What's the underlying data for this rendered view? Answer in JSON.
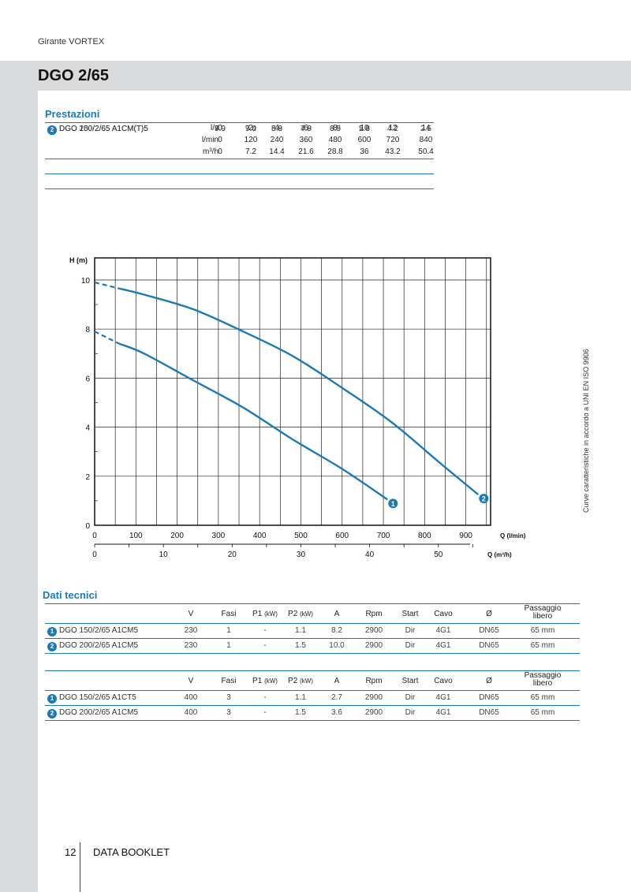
{
  "header": {
    "category": "Girante VORTEX",
    "model_title": "DGO 2/65"
  },
  "performance": {
    "section_title": "Prestazioni",
    "units": [
      "l/s",
      "l/min",
      "m³/h"
    ],
    "flow_rows": [
      [
        "0",
        "2",
        "4",
        "6",
        "8",
        "10",
        "12",
        "14"
      ],
      [
        "0",
        "120",
        "240",
        "360",
        "480",
        "600",
        "720",
        "840"
      ],
      [
        "0",
        "7.2",
        "14.4",
        "21.6",
        "28.8",
        "36",
        "43.2",
        "50.4"
      ]
    ],
    "models": [
      {
        "badge": "1",
        "name": "DGO 150/2/65 A1CM(T)5",
        "heads": [
          "7.9",
          "7.0",
          "5.9",
          "4.8",
          "3.5",
          "2.3",
          "",
          ""
        ]
      },
      {
        "badge": "2",
        "name": "DGO 200/2/65 A1CM(T)5",
        "heads": [
          "9.9",
          "9.4",
          "8.8",
          "7.9",
          "6.9",
          "5.6",
          "4.2",
          "2.5"
        ]
      }
    ]
  },
  "chart_data": {
    "type": "line",
    "ylabel": "H (m)",
    "xlabel": "Q (l/min)",
    "x2label": "Q (m³/h)",
    "xlim": [
      0,
      960
    ],
    "ylim": [
      0,
      10.9
    ],
    "x_ticks": [
      "0",
      "100",
      "200",
      "300",
      "400",
      "500",
      "600",
      "700",
      "800",
      "900"
    ],
    "x2_ticks": [
      "0",
      "10",
      "20",
      "30",
      "40",
      "50"
    ],
    "y_ticks": [
      "0",
      "2",
      "4",
      "6",
      "8",
      "10"
    ],
    "grid": true,
    "series": [
      {
        "name": "1",
        "color": "#1a7ab8",
        "x": [
          0,
          60,
          120,
          240,
          360,
          480,
          600,
          710
        ],
        "y": [
          7.9,
          7.4,
          7.0,
          5.9,
          4.8,
          3.5,
          2.3,
          1.05
        ]
      },
      {
        "name": "2",
        "color": "#1a7ab8",
        "x": [
          0,
          60,
          120,
          240,
          360,
          480,
          600,
          720,
          840,
          930
        ],
        "y": [
          9.9,
          9.65,
          9.4,
          8.8,
          7.9,
          6.9,
          5.6,
          4.2,
          2.5,
          1.25
        ]
      }
    ],
    "dashed_until_x": 60
  },
  "side_note": "Curve caratteristiche in accordo a UNI EN ISO 9906",
  "tech": {
    "section_title": "Dati tecnici",
    "columns": [
      "V",
      "Fasi",
      "P1",
      "(kW)",
      "P2",
      "(kW)",
      "A",
      "Rpm",
      "Start",
      "Cavo",
      "Ø",
      "Passaggio",
      "libero"
    ],
    "table1": [
      {
        "badge": "1",
        "name": "DGO 150/2/65 A1CM5",
        "v": "230",
        "fasi": "1",
        "p1": "-",
        "p2": "1.1",
        "a": "8.2",
        "rpm": "2900",
        "start": "Dir",
        "cavo": "4G1",
        "dia": "DN65",
        "pass": "65 mm"
      },
      {
        "badge": "2",
        "name": "DGO 200/2/65 A1CM5",
        "v": "230",
        "fasi": "1",
        "p1": "-",
        "p2": "1.5",
        "a": "10.0",
        "rpm": "2900",
        "start": "Dir",
        "cavo": "4G1",
        "dia": "DN65",
        "pass": "65 mm"
      }
    ],
    "table2": [
      {
        "badge": "1",
        "name": "DGO 150/2/65 A1CT5",
        "v": "400",
        "fasi": "3",
        "p1": "-",
        "p2": "1.1",
        "a": "2.7",
        "rpm": "2900",
        "start": "Dir",
        "cavo": "4G1",
        "dia": "DN65",
        "pass": "65 mm"
      },
      {
        "badge": "2",
        "name": "DGO 200/2/65 A1CM5",
        "v": "400",
        "fasi": "3",
        "p1": "-",
        "p2": "1.5",
        "a": "3.6",
        "rpm": "2900",
        "start": "Dir",
        "cavo": "4G1",
        "dia": "DN65",
        "pass": "65 mm"
      }
    ]
  },
  "footer": {
    "page_number": "12",
    "label": "DATA BOOKLET"
  }
}
